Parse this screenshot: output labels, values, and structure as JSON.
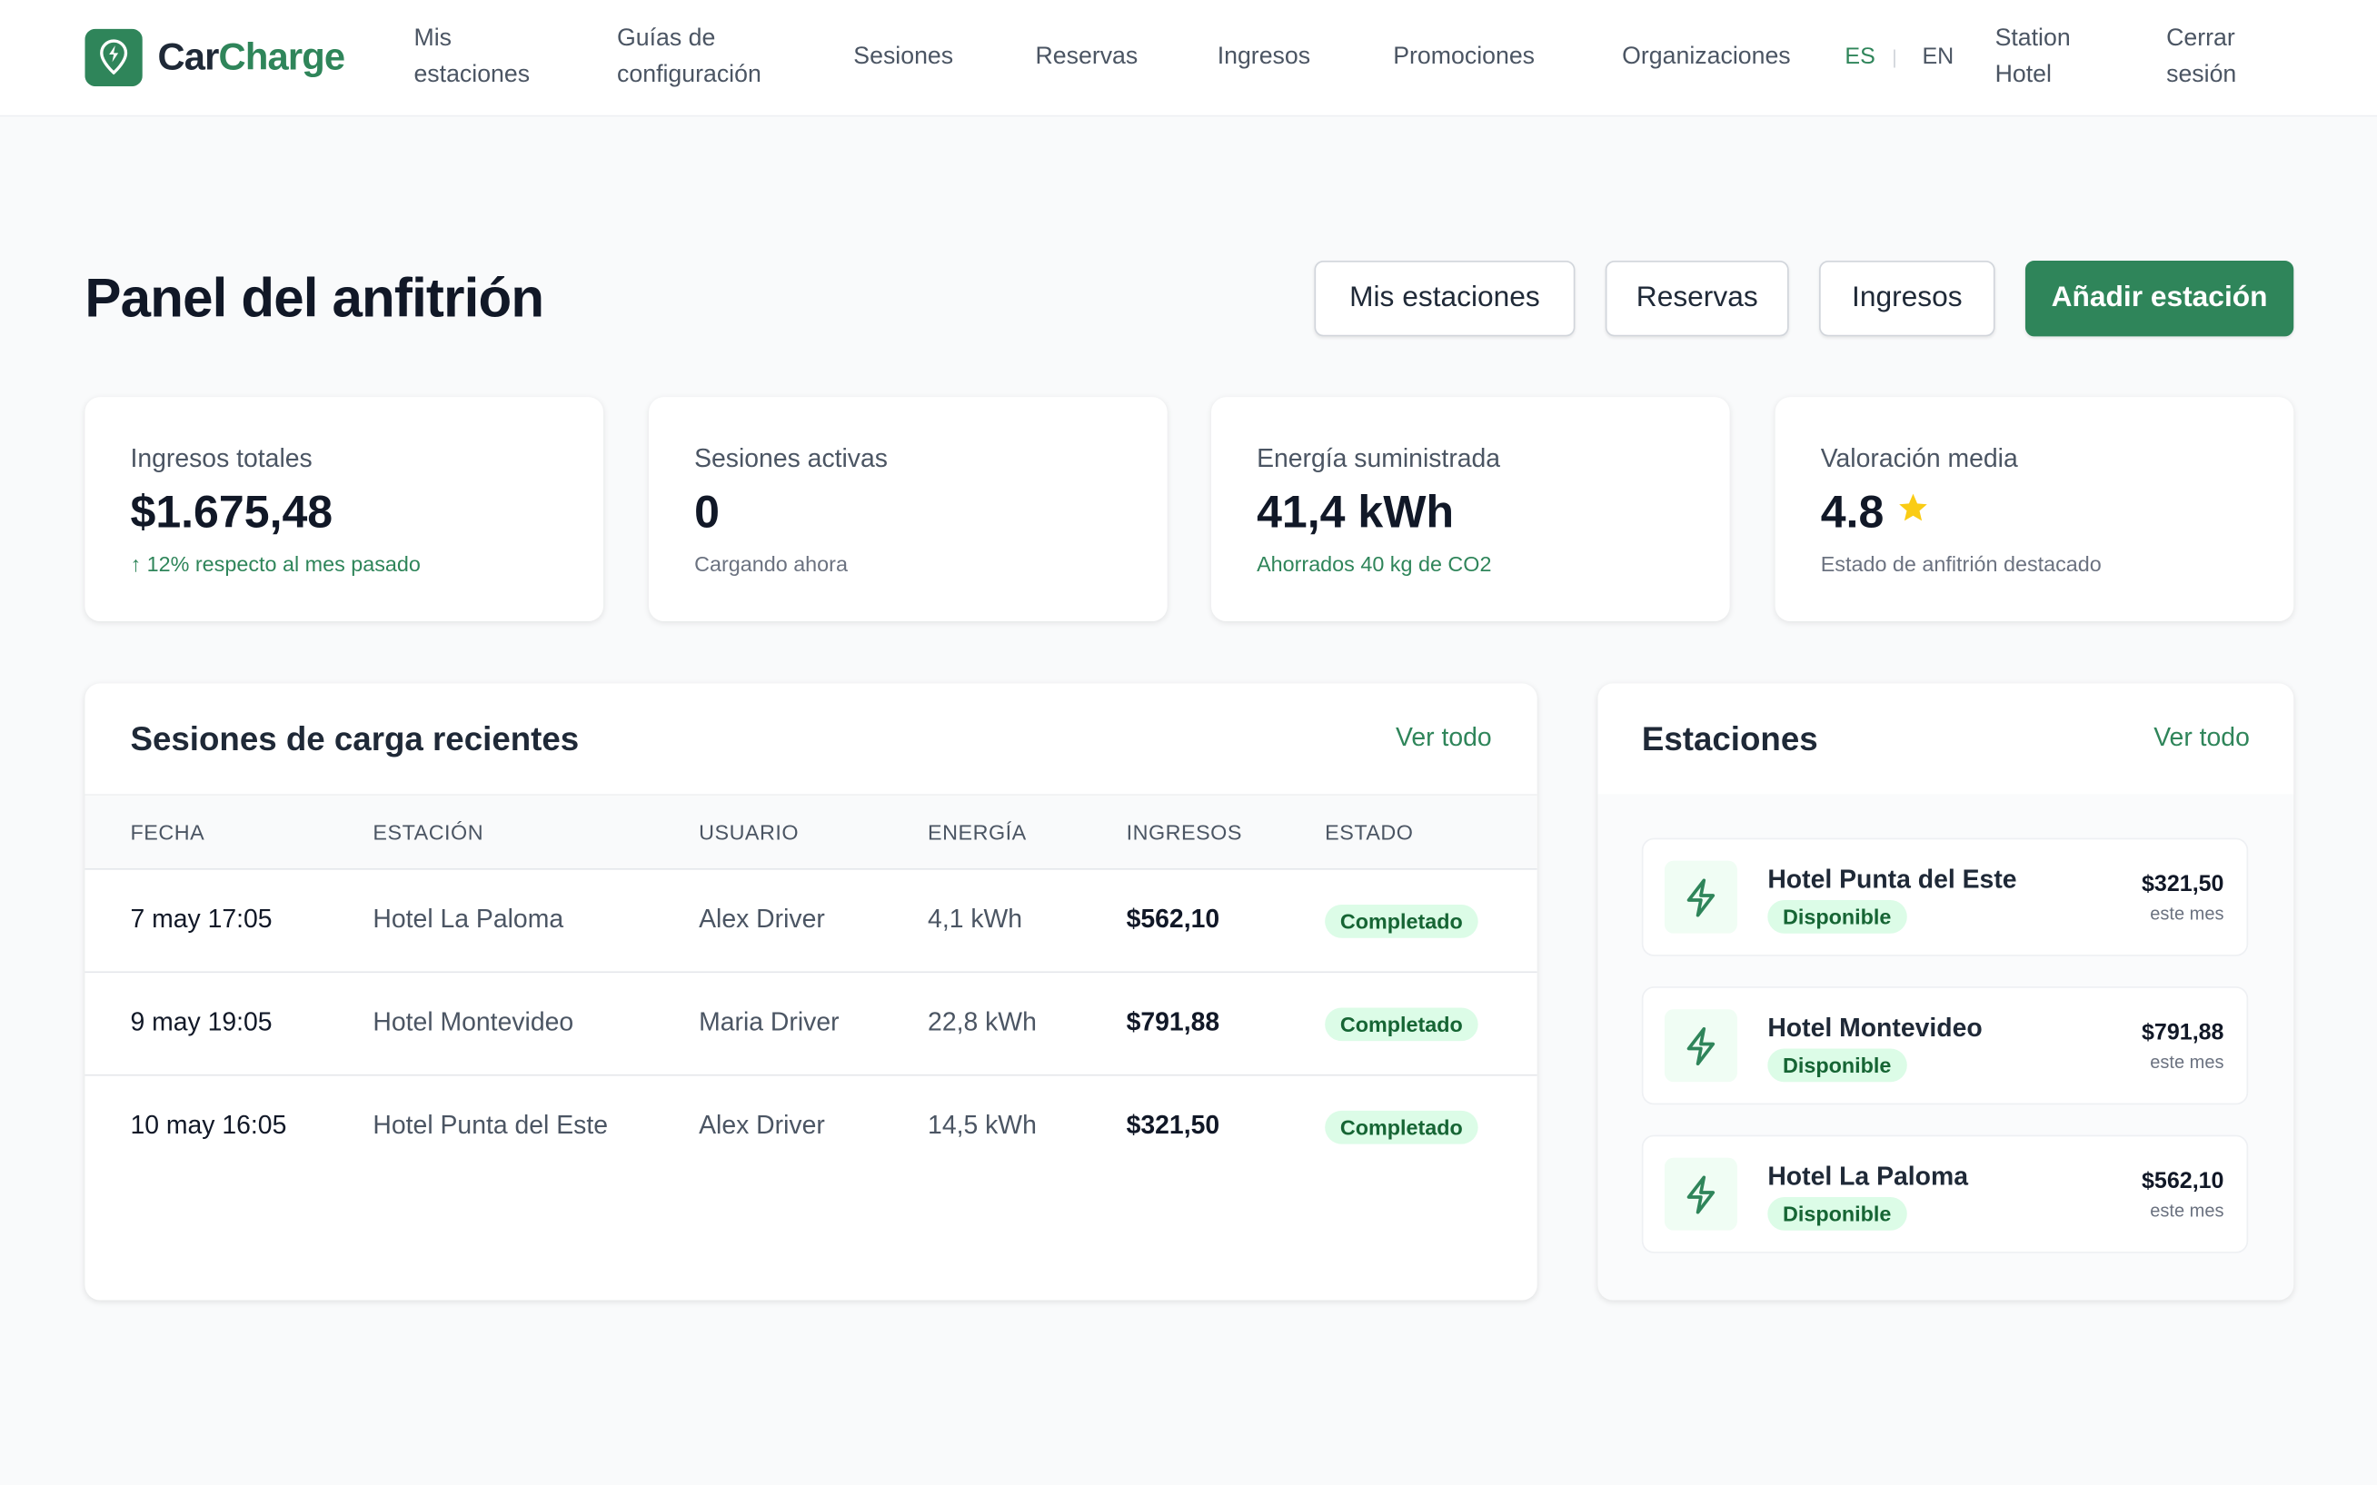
{
  "nav": {
    "brand_a": "Car",
    "brand_b": "Charge",
    "links": [
      "Mis estaciones",
      "Guías de configuración",
      "Sesiones",
      "Reservas",
      "Ingresos",
      "Promociones",
      "Organizaciones"
    ],
    "lang": [
      "ES",
      "EN"
    ],
    "lang_sep": "|",
    "user": "Station Hotel",
    "logout": "Cerrar sesión"
  },
  "header": {
    "title": "Panel del anfitrión",
    "buttons": [
      "Mis estaciones",
      "Reservas",
      "Ingresos"
    ],
    "primary": "Añadir estación"
  },
  "stats": [
    {
      "label": "Ingresos totales",
      "value": "$1.675,48",
      "note": "↑ 12% respecto al mes pasado"
    },
    {
      "label": "Sesiones activas",
      "value": "0",
      "note": "Cargando ahora"
    },
    {
      "label": "Energía suministrada",
      "value": "41,4 kWh",
      "note": "Ahorrados 40 kg de CO2"
    },
    {
      "label": "Valoración media",
      "value": "4.8",
      "note": "Estado de anfitrión destacado"
    }
  ],
  "sessions": {
    "title": "Sesiones de carga recientes",
    "link": "Ver todo",
    "columns": [
      "FECHA",
      "ESTACIÓN",
      "USUARIO",
      "ENERGÍA",
      "INGRESOS",
      "ESTADO"
    ],
    "rows": [
      [
        "7 may 17:05",
        "Hotel La Paloma",
        "Alex Driver",
        "4,1 kWh",
        "$562,10",
        "Completado"
      ],
      [
        "9 may 19:05",
        "Hotel Montevideo",
        "Maria Driver",
        "22,8 kWh",
        "$791,88",
        "Completado"
      ],
      [
        "10 may 16:05",
        "Hotel Punta del Este",
        "Alex Driver",
        "14,5 kWh",
        "$321,50",
        "Completado"
      ]
    ]
  },
  "stations": {
    "title": "Estaciones",
    "link": "Ver todo",
    "items": [
      {
        "name": "Hotel Punta del Este",
        "status": "Disponible",
        "amount": "$321,50",
        "period": "este mes"
      },
      {
        "name": "Hotel Montevideo",
        "status": "Disponible",
        "amount": "$791,88",
        "period": "este mes"
      },
      {
        "name": "Hotel La Paloma",
        "status": "Disponible",
        "amount": "$562,10",
        "period": "este mes"
      }
    ]
  }
}
